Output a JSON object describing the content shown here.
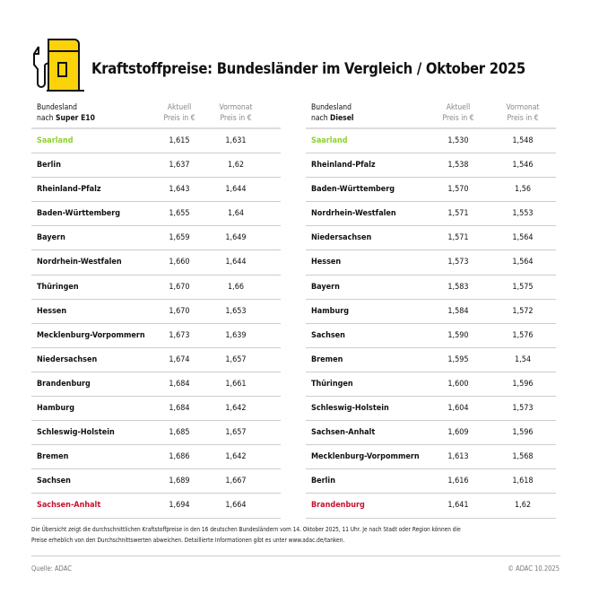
{
  "title": "Kraftstoffpreise: Bundesländer im Vergleich / Oktober 2025",
  "colors": {
    "accent_yellow": "#fcd20a",
    "cheapest": "#8cd22c",
    "most_expensive": "#c8102e"
  },
  "icon": "fuel-pump-icon",
  "tables": [
    {
      "header": {
        "col1_line1": "Bundesland",
        "col1_prefix": "nach ",
        "col1_fuel": "Super E10",
        "col2_line1": "Aktuell",
        "col2_line2": "Preis in €",
        "col3_line1": "Vormonat",
        "col3_line2": "Preis in €"
      },
      "rows": [
        [
          "Saarland",
          "1,615",
          "1,631"
        ],
        [
          "Berlin",
          "1,637",
          "1,62"
        ],
        [
          "Rheinland-Pfalz",
          "1,643",
          "1,644"
        ],
        [
          "Baden-Württemberg",
          "1,655",
          "1,64"
        ],
        [
          "Bayern",
          "1,659",
          "1,649"
        ],
        [
          "Nordrhein-Westfalen",
          "1,660",
          "1,644"
        ],
        [
          "Thüringen",
          "1,670",
          "1,66"
        ],
        [
          "Hessen",
          "1,670",
          "1,653"
        ],
        [
          "Mecklenburg-Vorpommern",
          "1,673",
          "1,639"
        ],
        [
          "Niedersachsen",
          "1,674",
          "1,657"
        ],
        [
          "Brandenburg",
          "1,684",
          "1,661"
        ],
        [
          "Hamburg",
          "1,684",
          "1,642"
        ],
        [
          "Schleswig-Holstein",
          "1,685",
          "1,657"
        ],
        [
          "Bremen",
          "1,686",
          "1,642"
        ],
        [
          "Sachsen",
          "1,689",
          "1,667"
        ],
        [
          "Sachsen-Anhalt",
          "1,694",
          "1,664"
        ]
      ]
    },
    {
      "header": {
        "col1_line1": "Bundesland",
        "col1_prefix": "nach ",
        "col1_fuel": "Diesel",
        "col2_line1": "Aktuell",
        "col2_line2": "Preis in €",
        "col3_line1": "Vormonat",
        "col3_line2": "Preis in €"
      },
      "rows": [
        [
          "Saarland",
          "1,530",
          "1,548"
        ],
        [
          "Rheinland-Pfalz",
          "1,538",
          "1,546"
        ],
        [
          "Baden-Württemberg",
          "1,570",
          "1,56"
        ],
        [
          "Nordrhein-Westfalen",
          "1,571",
          "1,553"
        ],
        [
          "Niedersachsen",
          "1,571",
          "1,564"
        ],
        [
          "Hessen",
          "1,573",
          "1,564"
        ],
        [
          "Bayern",
          "1,583",
          "1,575"
        ],
        [
          "Hamburg",
          "1,584",
          "1,572"
        ],
        [
          "Sachsen",
          "1,590",
          "1,576"
        ],
        [
          "Bremen",
          "1,595",
          "1,54"
        ],
        [
          "Thüringen",
          "1,600",
          "1,596"
        ],
        [
          "Schleswig-Holstein",
          "1,604",
          "1,573"
        ],
        [
          "Sachsen-Anhalt",
          "1,609",
          "1,596"
        ],
        [
          "Mecklenburg-Vorpommern",
          "1,613",
          "1,568"
        ],
        [
          "Berlin",
          "1,616",
          "1,618"
        ],
        [
          "Brandenburg",
          "1,641",
          "1,62"
        ]
      ]
    }
  ],
  "note_line1": "Die Übersicht zeigt die durchschnittlichen Kraftstoffpreise in den 16 deutschen Bundesländern vom 14. Oktober 2025, 11 Uhr. Je nach Stadt oder Region können die",
  "note_line2": "Preise erheblich von den Durchschnittswerten abweichen. Detaillierte Informationen gibt es unter www.adac.de/tanken.",
  "source": "Quelle: ADAC",
  "copyright": "© ADAC 10.2025"
}
